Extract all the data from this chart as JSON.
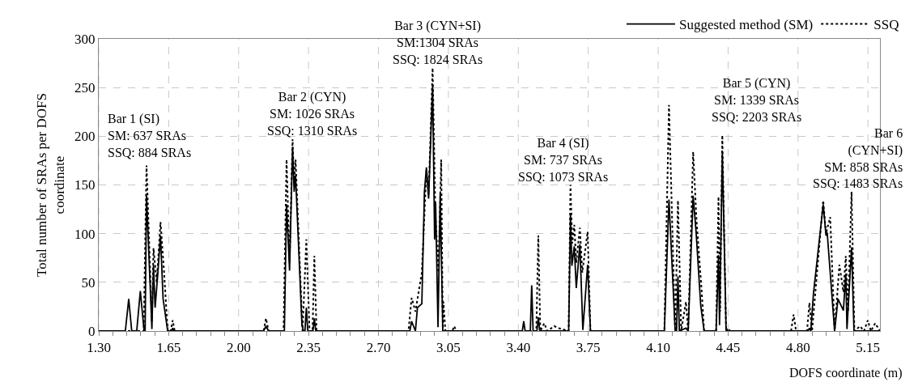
{
  "chart_data": {
    "type": "line",
    "xlabel": "DOFS coordinate (m)",
    "ylabel": "Total number of SRAs per DOFS\ncoordinate",
    "xlim": [
      1.3,
      5.21
    ],
    "ylim": [
      0,
      300
    ],
    "xticks": [
      {
        "value": 1.3,
        "label": "1.30"
      },
      {
        "value": 1.37,
        "label": null
      },
      {
        "value": 1.44,
        "label": null
      },
      {
        "value": 1.51,
        "label": null
      },
      {
        "value": 1.58,
        "label": null
      },
      {
        "value": 1.65,
        "label": "1.65"
      },
      {
        "value": 1.72,
        "label": null
      },
      {
        "value": 1.79,
        "label": null
      },
      {
        "value": 1.86,
        "label": null
      },
      {
        "value": 1.93,
        "label": null
      },
      {
        "value": 2.0,
        "label": "2.00"
      },
      {
        "value": 2.07,
        "label": null
      },
      {
        "value": 2.14,
        "label": null
      },
      {
        "value": 2.21,
        "label": null
      },
      {
        "value": 2.28,
        "label": null
      },
      {
        "value": 2.35,
        "label": "2.35"
      },
      {
        "value": 2.42,
        "label": null
      },
      {
        "value": 2.49,
        "label": null
      },
      {
        "value": 2.56,
        "label": null
      },
      {
        "value": 2.63,
        "label": null
      },
      {
        "value": 2.7,
        "label": "2.70"
      },
      {
        "value": 2.77,
        "label": null
      },
      {
        "value": 2.84,
        "label": null
      },
      {
        "value": 2.91,
        "label": null
      },
      {
        "value": 2.98,
        "label": null
      },
      {
        "value": 3.05,
        "label": "3.05"
      },
      {
        "value": 3.12,
        "label": null
      },
      {
        "value": 3.19,
        "label": null
      },
      {
        "value": 3.26,
        "label": null
      },
      {
        "value": 3.33,
        "label": null
      },
      {
        "value": 3.4,
        "label": "3.40"
      },
      {
        "value": 3.47,
        "label": null
      },
      {
        "value": 3.54,
        "label": null
      },
      {
        "value": 3.61,
        "label": null
      },
      {
        "value": 3.68,
        "label": null
      },
      {
        "value": 3.75,
        "label": "3.75"
      },
      {
        "value": 3.82,
        "label": null
      },
      {
        "value": 3.89,
        "label": null
      },
      {
        "value": 3.96,
        "label": null
      },
      {
        "value": 4.03,
        "label": null
      },
      {
        "value": 4.1,
        "label": "4.10"
      },
      {
        "value": 4.17,
        "label": null
      },
      {
        "value": 4.24,
        "label": null
      },
      {
        "value": 4.31,
        "label": null
      },
      {
        "value": 4.38,
        "label": null
      },
      {
        "value": 4.45,
        "label": "4.45"
      },
      {
        "value": 4.52,
        "label": null
      },
      {
        "value": 4.59,
        "label": null
      },
      {
        "value": 4.66,
        "label": null
      },
      {
        "value": 4.73,
        "label": null
      },
      {
        "value": 4.8,
        "label": "4.80"
      },
      {
        "value": 4.87,
        "label": null
      },
      {
        "value": 4.94,
        "label": null
      },
      {
        "value": 5.01,
        "label": null
      },
      {
        "value": 5.08,
        "label": null
      },
      {
        "value": 5.15,
        "label": "5.15"
      }
    ],
    "yticks": [
      0,
      50,
      100,
      150,
      200,
      250,
      300
    ],
    "grid": true,
    "legend": "top right",
    "marker": "none",
    "annotations": [
      "Bar 1 (SI)\nSM: 637 SRAs\nSSQ: 884 SRAs",
      "Bar 2 (CYN)\nSM: 1026 SRAs\nSSQ: 1310 SRAs",
      "Bar 3 (CYN+SI)\nSM:1304 SRAs\nSSQ: 1824 SRAs",
      "Bar 4 (SI)\nSM: 737 SRAs\nSSQ: 1073 SRAs",
      "Bar 5 (CYN)\nSM: 1339 SRAs\nSSQ: 2203 SRAs",
      "Bar 6\n(CYN+SI)\nSM: 858 SRAs\nSSQ: 1483 SRAs"
    ],
    "series": [
      {
        "name": "Suggested method (SM)",
        "color": "#000000",
        "line_style": "solid",
        "x": [
          1.3,
          1.433,
          1.45,
          1.465,
          1.49,
          1.508,
          1.527,
          1.532,
          1.539,
          1.566,
          1.574,
          1.582,
          1.596,
          1.609,
          1.622,
          1.645,
          1.665,
          1.67,
          1.675,
          2.125,
          2.137,
          2.15,
          2.229,
          2.24,
          2.255,
          2.27,
          2.278,
          2.285,
          2.317,
          2.325,
          2.332,
          2.339,
          2.346,
          2.372,
          2.379,
          2.386,
          2.857,
          2.866,
          2.885,
          2.895,
          2.917,
          2.93,
          2.94,
          2.951,
          2.971,
          2.981,
          2.986,
          2.998,
          3.009,
          3.022,
          3.42,
          3.427,
          3.434,
          3.46,
          3.467,
          3.474,
          3.493,
          3.5,
          3.507,
          3.652,
          3.661,
          3.668,
          3.68,
          3.69,
          3.708,
          3.723,
          3.747,
          3.761,
          4.131,
          4.154,
          4.185,
          4.192,
          4.199,
          4.206,
          4.239,
          4.25,
          4.275,
          4.29,
          4.313,
          4.33,
          4.39,
          4.402,
          4.407,
          4.421,
          4.44,
          4.85,
          4.857,
          4.864,
          4.877,
          4.926,
          4.94,
          4.946,
          4.961,
          4.983,
          5.0,
          5.027,
          5.039,
          5.045,
          5.068,
          5.08,
          5.21
        ],
        "values": [
          0,
          0,
          33,
          0,
          0,
          41,
          0,
          0,
          139,
          2,
          68,
          24,
          60,
          98,
          33,
          0,
          0,
          3,
          0,
          0,
          5,
          0,
          0,
          130,
          62,
          189,
          143,
          160,
          6,
          0,
          0,
          24,
          0,
          0,
          13,
          0,
          0,
          10,
          0,
          24,
          28,
          143,
          168,
          136,
          252,
          94,
          132,
          4,
          142,
          0,
          0,
          10,
          0,
          0,
          47,
          0,
          0,
          14,
          0,
          0,
          120,
          67,
          87,
          44,
          89,
          1,
          68,
          0,
          0,
          135,
          0,
          0,
          56,
          0,
          3,
          0,
          139,
          101,
          26,
          0,
          0,
          78,
          6,
          183,
          0,
          0,
          3,
          0,
          38,
          130,
          98,
          101,
          60,
          0,
          33,
          21,
          59,
          2,
          86,
          0,
          0
        ]
      },
      {
        "name": "SSQ",
        "color": "#000000",
        "line_style": "dotted",
        "x": [
          1.3,
          1.525,
          1.539,
          1.566,
          1.574,
          1.59,
          1.609,
          1.626,
          1.645,
          1.66,
          1.67,
          1.68,
          2.125,
          2.137,
          2.15,
          2.225,
          2.24,
          2.255,
          2.27,
          2.278,
          2.285,
          2.32,
          2.339,
          2.355,
          2.37,
          2.379,
          2.39,
          2.85,
          2.866,
          2.885,
          2.917,
          2.94,
          2.951,
          2.971,
          2.985,
          3.0,
          3.014,
          3.022,
          3.025,
          3.035,
          3.07,
          3.079,
          3.09,
          3.49,
          3.5,
          3.51,
          3.53,
          3.545,
          3.58,
          3.6,
          3.652,
          3.661,
          3.67,
          3.68,
          3.69,
          3.708,
          3.72,
          3.747,
          3.761,
          4.131,
          4.154,
          4.185,
          4.199,
          4.215,
          4.239,
          4.25,
          4.275,
          4.292,
          4.318,
          4.33,
          4.39,
          4.402,
          4.41,
          4.421,
          4.44,
          4.45,
          4.46,
          4.765,
          4.778,
          4.79,
          4.845,
          4.857,
          4.87,
          4.926,
          4.94,
          4.961,
          4.983,
          5.007,
          5.027,
          5.039,
          5.05,
          5.068,
          5.082,
          5.11,
          5.13,
          5.149,
          5.165,
          5.186,
          5.21
        ],
        "values": [
          0,
          0,
          170,
          10,
          85,
          50,
          112,
          63,
          0,
          0,
          11,
          0,
          0,
          13,
          0,
          0,
          176,
          70,
          197,
          150,
          176,
          0,
          94,
          0,
          0,
          77,
          0,
          0,
          34,
          20,
          60,
          165,
          140,
          270,
          120,
          60,
          176,
          0,
          30,
          0,
          0,
          5,
          0,
          0,
          98,
          0,
          8,
          0,
          5,
          3,
          0,
          150,
          90,
          109,
          70,
          106,
          60,
          102,
          0,
          0,
          232,
          0,
          134,
          0,
          30,
          0,
          184,
          113,
          40,
          0,
          0,
          138,
          20,
          201,
          0,
          3,
          0,
          0,
          17,
          0,
          0,
          29,
          0,
          134,
          100,
          117,
          0,
          68,
          40,
          77,
          20,
          143,
          0,
          5,
          0,
          11,
          0,
          8,
          0
        ]
      }
    ]
  }
}
